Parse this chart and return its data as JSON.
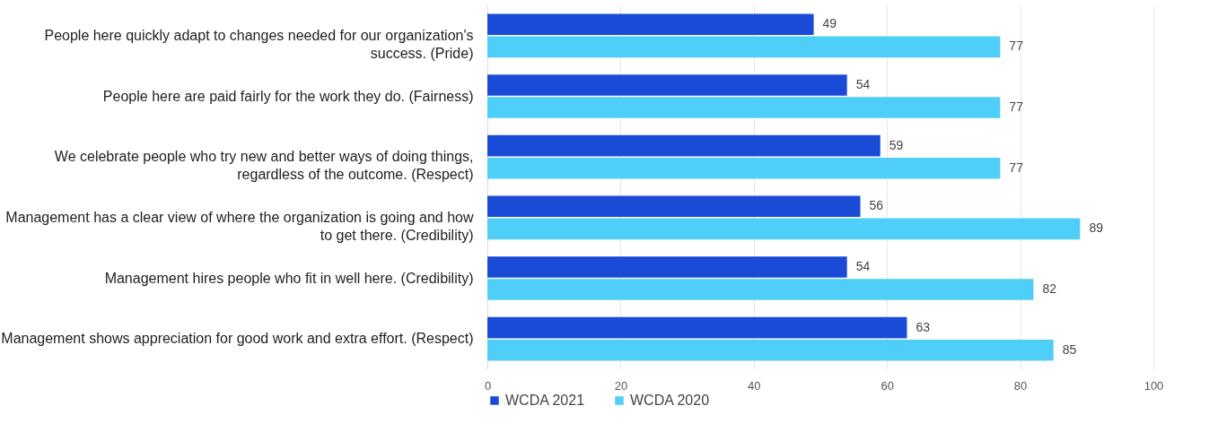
{
  "chart_data": {
    "type": "bar",
    "orientation": "horizontal",
    "categories": [
      "People here quickly adapt to changes needed for our organization's success. (Pride)",
      "People here are paid fairly for the work they do. (Fairness)",
      "We celebrate people who try new and better ways of doing things, regardless of the outcome. (Respect)",
      "Management has a clear view of where the organization is going and how to get there. (Credibility)",
      "Management hires people who fit in well here. (Credibility)",
      "Management shows appreciation for good work and extra effort. (Respect)"
    ],
    "series": [
      {
        "name": "WCDA 2021",
        "color": "#1a4bd6",
        "values": [
          49,
          54,
          59,
          56,
          54,
          63
        ]
      },
      {
        "name": "WCDA 2020",
        "color": "#4fcff8",
        "values": [
          77,
          77,
          77,
          89,
          82,
          85
        ]
      }
    ],
    "xlim": [
      0,
      100
    ],
    "xticks": [
      0,
      20,
      40,
      60,
      80,
      100
    ],
    "grid": "x",
    "legend": "bottom",
    "data_labels": true
  }
}
